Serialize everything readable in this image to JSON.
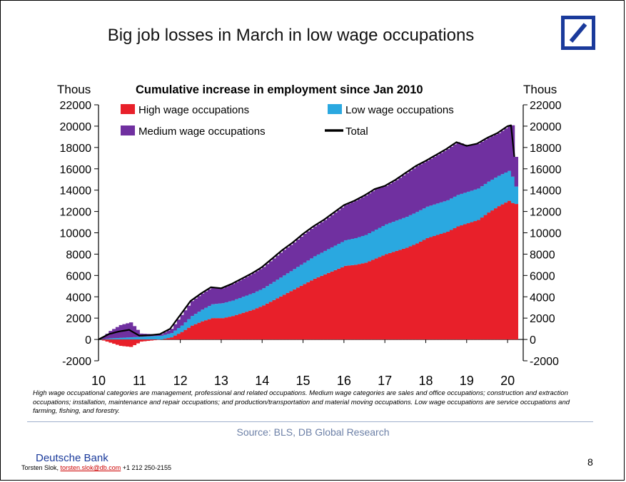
{
  "page": {
    "title": "Big job losses in March in low wage occupations",
    "footnote": "High wage occupational categories are management, professional and related occupations. Medium wage categories are sales and office occupations; construction and extraction occupations; installation, maintenance and repair occupations; and production/transportation and material moving occupations. Low wage occupations are service occupations and farming, fishing, and forestry.",
    "source": "Source: BLS, DB Global Research",
    "bank_name": "Deutsche Bank",
    "contact_name": "Torsten Slok,",
    "contact_email": "torsten.slok@db.com",
    "contact_phone": "+1 212 250-2155",
    "page_number": "8",
    "logo_color": "#1a3a9b"
  },
  "chart_data": {
    "type": "area",
    "title": "Cumulative increase in employment since Jan 2010",
    "ylabel_left": "Thous",
    "ylabel_right": "Thous",
    "ylim": [
      -2000,
      22000
    ],
    "yticks": [
      -2000,
      0,
      2000,
      4000,
      6000,
      8000,
      10000,
      12000,
      14000,
      16000,
      18000,
      20000,
      22000
    ],
    "xlim": [
      2010,
      2020.33
    ],
    "xticks": [
      {
        "value": 2010,
        "label": "10"
      },
      {
        "value": 2011,
        "label": "11"
      },
      {
        "value": 2012,
        "label": "12"
      },
      {
        "value": 2013,
        "label": "13"
      },
      {
        "value": 2014,
        "label": "14"
      },
      {
        "value": 2015,
        "label": "15"
      },
      {
        "value": 2016,
        "label": "16"
      },
      {
        "value": 2017,
        "label": "17"
      },
      {
        "value": 2018,
        "label": "18"
      },
      {
        "value": 2019,
        "label": "19"
      },
      {
        "value": 2020,
        "label": "20"
      }
    ],
    "legend": [
      {
        "name": "High wage occupations",
        "color": "#e8202a",
        "kind": "area"
      },
      {
        "name": "Low wage occupations",
        "color": "#2aa8e0",
        "kind": "area"
      },
      {
        "name": "Medium wage occupations",
        "color": "#7030a0",
        "kind": "area"
      },
      {
        "name": "Total",
        "color": "#000000",
        "kind": "line"
      }
    ],
    "x": [
      2010.0,
      2010.25,
      2010.5,
      2010.75,
      2011.0,
      2011.25,
      2011.5,
      2011.75,
      2012.0,
      2012.25,
      2012.5,
      2012.75,
      2013.0,
      2013.25,
      2013.5,
      2013.75,
      2014.0,
      2014.25,
      2014.5,
      2014.75,
      2015.0,
      2015.25,
      2015.5,
      2015.75,
      2016.0,
      2016.25,
      2016.5,
      2016.75,
      2017.0,
      2017.25,
      2017.5,
      2017.75,
      2018.0,
      2018.25,
      2018.5,
      2018.75,
      2019.0,
      2019.25,
      2019.5,
      2019.75,
      2020.0,
      2020.08,
      2020.17
    ],
    "series": [
      {
        "name": "High wage occupations",
        "values": [
          0,
          -300,
          -600,
          -700,
          -200,
          -100,
          0,
          200,
          700,
          1300,
          1700,
          2000,
          2000,
          2200,
          2500,
          2800,
          3200,
          3700,
          4200,
          4700,
          5200,
          5700,
          6100,
          6500,
          6900,
          7000,
          7200,
          7600,
          8000,
          8300,
          8600,
          9000,
          9500,
          9800,
          10100,
          10600,
          10900,
          11200,
          11900,
          12500,
          13000,
          12800,
          12700
        ]
      },
      {
        "name": "Low wage occupations",
        "values": [
          0,
          100,
          150,
          200,
          250,
          300,
          350,
          400,
          600,
          900,
          1100,
          1300,
          1400,
          1450,
          1500,
          1550,
          1600,
          1700,
          1800,
          1900,
          2000,
          2100,
          2200,
          2300,
          2400,
          2500,
          2600,
          2700,
          2800,
          2850,
          2900,
          2950,
          2950,
          2950,
          2950,
          2950,
          2950,
          2950,
          2900,
          2850,
          2800,
          2500,
          1600
        ]
      },
      {
        "name": "Medium wage occupations",
        "values": [
          0,
          700,
          1200,
          1400,
          300,
          200,
          150,
          400,
          1000,
          1400,
          1500,
          1600,
          1400,
          1550,
          1700,
          1850,
          2000,
          2200,
          2400,
          2500,
          2700,
          2800,
          2900,
          3100,
          3300,
          3500,
          3700,
          3800,
          3600,
          3800,
          4100,
          4300,
          4300,
          4550,
          4800,
          4950,
          4300,
          4200,
          4100,
          4000,
          4200,
          4900,
          2700
        ]
      },
      {
        "name": "Total",
        "values": [
          0,
          500,
          750,
          900,
          350,
          400,
          500,
          1000,
          2300,
          3600,
          4300,
          4900,
          4800,
          5200,
          5700,
          6200,
          6800,
          7600,
          8400,
          9100,
          9900,
          10600,
          11200,
          11900,
          12600,
          13000,
          13500,
          14100,
          14400,
          14950,
          15600,
          16250,
          16750,
          17300,
          17850,
          18500,
          18150,
          18350,
          18900,
          19350,
          20000,
          20200,
          17000
        ]
      }
    ]
  }
}
